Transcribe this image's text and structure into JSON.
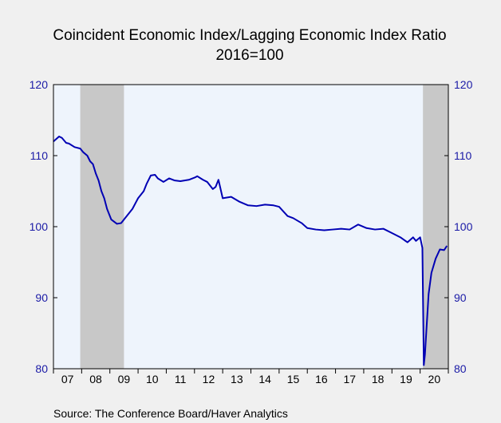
{
  "chart_data": {
    "type": "line",
    "title": "Coincident Economic Index/Lagging Economic Index Ratio",
    "subtitle": "2016=100",
    "source": "Source:  The Conference Board/Haver Analytics",
    "xlabel": "",
    "ylabel": "",
    "ylim": [
      80,
      120
    ],
    "xlim": [
      2007.0,
      2021.0
    ],
    "y_ticks": [
      "80",
      "90",
      "100",
      "110",
      "120"
    ],
    "x_ticks": [
      "07",
      "08",
      "09",
      "10",
      "11",
      "12",
      "13",
      "14",
      "15",
      "16",
      "17",
      "18",
      "19",
      "20"
    ],
    "grid": false,
    "legend": "none",
    "recessions": [
      [
        2007.95,
        2009.5
      ],
      [
        2020.1,
        2021.0
      ]
    ],
    "series": [
      {
        "x": [
          2007.0,
          2007.2,
          2007.3,
          2007.45,
          2007.55,
          2007.75,
          2007.95,
          2008.05,
          2008.2,
          2008.3,
          2008.4,
          2008.5,
          2008.6,
          2008.7,
          2008.8,
          2008.9,
          2009.05,
          2009.25,
          2009.4,
          2009.6,
          2009.8,
          2010.0,
          2010.2,
          2010.3,
          2010.45,
          2010.6,
          2010.7,
          2010.9,
          2011.1,
          2011.3,
          2011.5,
          2011.8,
          2012.0,
          2012.1,
          2012.3,
          2012.45,
          2012.65,
          2012.75,
          2012.85,
          2013.0,
          2013.3,
          2013.6,
          2013.9,
          2014.2,
          2014.5,
          2014.8,
          2015.0,
          2015.3,
          2015.5,
          2015.8,
          2016.0,
          2016.3,
          2016.6,
          2016.9,
          2017.2,
          2017.5,
          2017.8,
          2018.1,
          2018.4,
          2018.7,
          2019.0,
          2019.3,
          2019.55,
          2019.75,
          2019.85,
          2020.0,
          2020.08,
          2020.13,
          2020.17,
          2020.3,
          2020.4,
          2020.55,
          2020.7,
          2020.85,
          2020.95
        ],
        "values": [
          112.0,
          112.7,
          112.5,
          111.8,
          111.7,
          111.2,
          111.0,
          110.5,
          110.0,
          109.2,
          108.8,
          107.5,
          106.5,
          105.0,
          104.0,
          102.5,
          101.0,
          100.4,
          100.5,
          101.5,
          102.5,
          104.0,
          105.0,
          106.0,
          107.2,
          107.3,
          106.8,
          106.3,
          106.8,
          106.5,
          106.4,
          106.6,
          106.9,
          107.1,
          106.6,
          106.3,
          105.3,
          105.6,
          106.6,
          104.0,
          104.2,
          103.5,
          103.0,
          102.9,
          103.1,
          103.0,
          102.8,
          101.5,
          101.2,
          100.5,
          99.8,
          99.6,
          99.5,
          99.6,
          99.7,
          99.6,
          100.3,
          99.8,
          99.6,
          99.7,
          99.1,
          98.5,
          97.8,
          98.5,
          98.0,
          98.5,
          97.0,
          80.5,
          82.0,
          90.5,
          93.5,
          95.5,
          96.8,
          96.7,
          97.3
        ]
      }
    ]
  }
}
